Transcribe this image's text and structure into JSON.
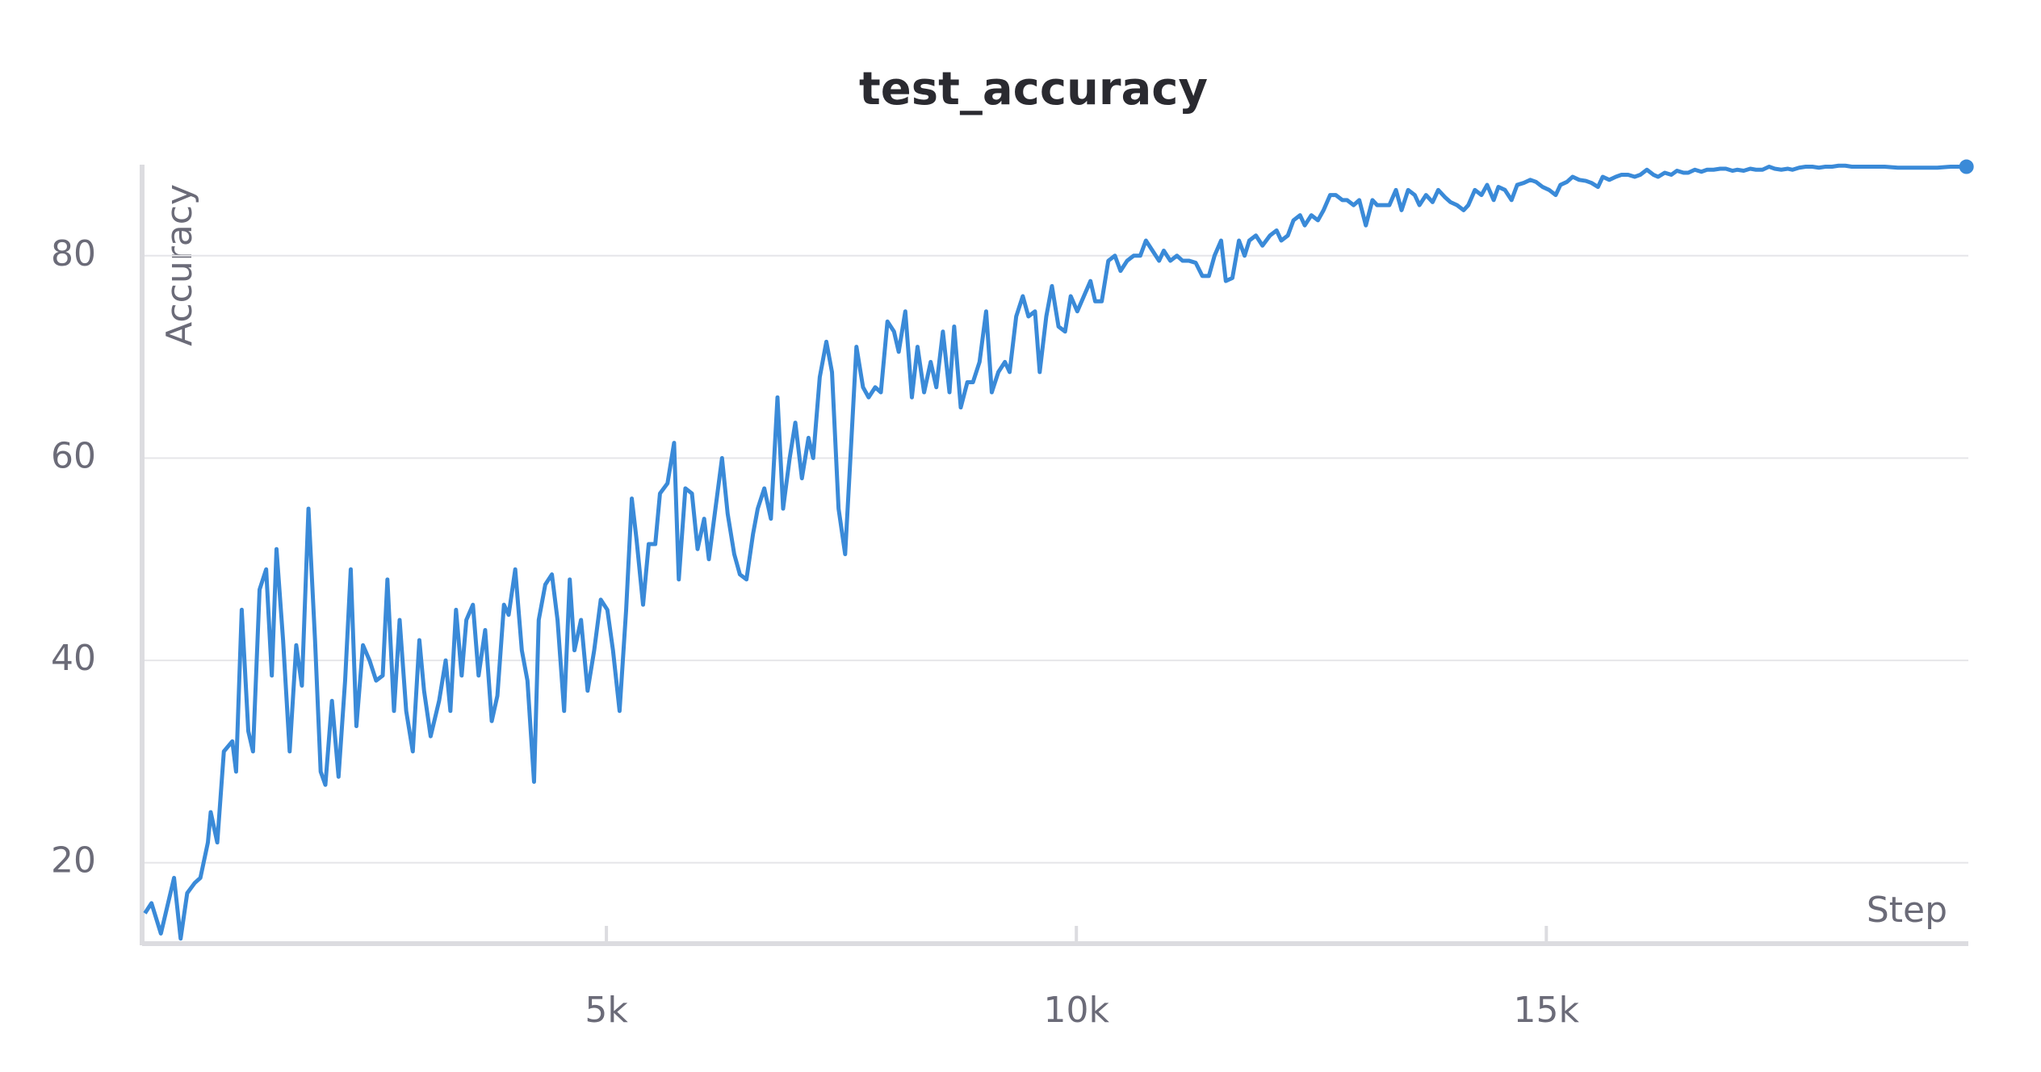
{
  "chart_data": {
    "type": "line",
    "title": "test_accuracy",
    "x_label": "Step",
    "y_label": "Accuracy",
    "color": "#3a8ad8",
    "x": [
      90,
      160,
      260,
      400,
      470,
      540,
      620,
      680,
      760,
      790,
      860,
      930,
      1020,
      1060,
      1120,
      1190,
      1240,
      1310,
      1380,
      1440,
      1490,
      1560,
      1630,
      1700,
      1760,
      1830,
      1900,
      1960,
      2010,
      2080,
      2150,
      2220,
      2280,
      2340,
      2410,
      2480,
      2550,
      2620,
      2670,
      2740,
      2800,
      2870,
      2940,
      3010,
      3060,
      3130,
      3220,
      3290,
      3340,
      3400,
      3460,
      3510,
      3580,
      3640,
      3710,
      3780,
      3840,
      3910,
      3960,
      4030,
      4100,
      4160,
      4230,
      4280,
      4350,
      4420,
      4480,
      4550,
      4610,
      4660,
      4730,
      4800,
      4870,
      4940,
      5010,
      5070,
      5140,
      5210,
      5270,
      5320,
      5390,
      5450,
      5520,
      5570,
      5650,
      5720,
      5770,
      5840,
      5910,
      5970,
      6040,
      6090,
      6160,
      6230,
      6290,
      6360,
      6420,
      6490,
      6560,
      6610,
      6680,
      6750,
      6820,
      6880,
      6950,
      7010,
      7080,
      7150,
      7200,
      7270,
      7340,
      7400,
      7470,
      7540,
      7590,
      7660,
      7730,
      7790,
      7860,
      7920,
      7990,
      8060,
      8110,
      8180,
      8250,
      8310,
      8380,
      8450,
      8510,
      8580,
      8650,
      8700,
      8770,
      8840,
      8900,
      8970,
      9040,
      9100,
      9170,
      9240,
      9290,
      9360,
      9430,
      9490,
      9560,
      9610,
      9680,
      9740,
      9810,
      9880,
      9940,
      10010,
      10080,
      10150,
      10200,
      10270,
      10340,
      10410,
      10470,
      10540,
      10610,
      10680,
      10740,
      10810,
      10880,
      10930,
      11000,
      11070,
      11130,
      11200,
      11270,
      11340,
      11410,
      11470,
      11540,
      11590,
      11660,
      11730,
      11790,
      11840,
      11910,
      11980,
      12060,
      12130,
      12180,
      12250,
      12310,
      12380,
      12430,
      12500,
      12570,
      12630,
      12700,
      12760,
      12830,
      12880,
      12950,
      13010,
      13080,
      13150,
      13200,
      13270,
      13330,
      13400,
      13460,
      13530,
      13600,
      13650,
      13720,
      13790,
      13850,
      13920,
      13980,
      14050,
      14120,
      14170,
      14240,
      14310,
      14370,
      14440,
      14490,
      14560,
      14630,
      14690,
      14760,
      14830,
      14890,
      14960,
      15030,
      15100,
      15150,
      15220,
      15280,
      15350,
      15420,
      15480,
      15550,
      15600,
      15670,
      15740,
      15800,
      15870,
      15940,
      16000,
      16070,
      16140,
      16190,
      16260,
      16330,
      16390,
      16460,
      16510,
      16580,
      16650,
      16710,
      16780,
      16850,
      16910,
      16980,
      17030,
      17100,
      17170,
      17230,
      17300,
      17370,
      17430,
      17500,
      17570,
      17620,
      17690,
      17760,
      17830,
      17900,
      17970,
      18040,
      18110,
      18180,
      18250,
      18320,
      18460,
      18600,
      18740,
      18880,
      19020,
      19160,
      19300,
      19470
    ],
    "values": [
      15,
      16,
      13,
      18.5,
      12.5,
      17,
      18,
      18.5,
      22,
      25,
      22,
      31,
      32,
      29,
      45,
      33,
      31,
      47,
      49,
      38.5,
      51,
      42,
      31,
      41.5,
      37.5,
      55,
      42,
      29,
      27.7,
      36,
      28.5,
      38,
      49,
      33.5,
      41.5,
      40,
      38,
      38.5,
      48,
      35,
      44,
      35,
      31,
      42,
      37,
      32.5,
      36,
      40,
      35,
      45,
      38.5,
      44,
      45.5,
      38.5,
      43,
      34,
      36.5,
      45.5,
      44.5,
      49,
      41,
      38,
      28,
      44,
      47.5,
      48.5,
      44,
      35,
      48,
      41,
      44,
      37,
      41,
      46,
      45,
      41,
      35,
      45,
      56,
      52,
      45.5,
      51.5,
      51.5,
      56.5,
      57.5,
      61.5,
      48,
      57,
      56.5,
      51,
      54,
      50,
      55,
      60,
      54.5,
      50.5,
      48.5,
      48,
      52.5,
      55,
      57,
      54,
      66,
      55,
      60,
      63.5,
      58,
      62,
      60,
      68,
      71.5,
      68.5,
      55,
      50.5,
      59,
      71,
      67,
      66,
      67,
      66.5,
      73.5,
      72.5,
      70.5,
      74.5,
      66,
      71,
      66.5,
      69.5,
      67,
      72.5,
      66.5,
      73,
      65,
      67.5,
      67.5,
      69.5,
      74.5,
      66.5,
      68.5,
      69.5,
      68.5,
      74,
      76,
      74,
      74.5,
      68.5,
      74,
      77,
      73,
      72.5,
      76,
      74.5,
      76,
      77.5,
      75.5,
      75.5,
      79.5,
      80,
      78.5,
      79.5,
      80,
      80,
      81.5,
      80.5,
      79.5,
      80.5,
      79.5,
      80,
      79.5,
      79.5,
      79.3,
      78,
      78,
      80,
      81.5,
      77.5,
      77.8,
      81.5,
      80,
      81.5,
      82,
      81,
      82,
      82.5,
      81.5,
      82,
      83.5,
      84,
      83,
      84,
      83.5,
      84.5,
      86,
      86,
      85.5,
      85.5,
      85,
      85.5,
      83,
      85.5,
      85,
      85,
      85,
      86.5,
      84.5,
      86.5,
      86,
      85,
      86,
      85.3,
      86.5,
      85.8,
      85.3,
      85,
      84.5,
      85,
      86.5,
      86,
      87,
      85.5,
      86.8,
      86.5,
      85.5,
      87,
      87.2,
      87.5,
      87.3,
      86.8,
      86.5,
      86,
      87,
      87.3,
      87.8,
      87.5,
      87.4,
      87.2,
      86.8,
      87.8,
      87.5,
      87.8,
      88,
      88,
      87.8,
      88,
      88.5,
      88,
      87.8,
      88.2,
      88,
      88.4,
      88.2,
      88.2,
      88.5,
      88.3,
      88.5,
      88.5,
      88.6,
      88.6,
      88.4,
      88.5,
      88.4,
      88.6,
      88.5,
      88.5,
      88.8,
      88.6,
      88.5,
      88.6,
      88.5,
      88.7,
      88.8,
      88.8,
      88.7,
      88.8,
      88.8,
      88.9,
      88.9,
      88.8,
      88.8,
      88.8,
      88.8,
      88.7,
      88.7,
      88.7,
      88.7,
      88.8,
      88.8
    ],
    "xlim": [
      60,
      19490
    ],
    "ylim": [
      12,
      89
    ],
    "xticks": [
      {
        "value": 5000,
        "label": "5k"
      },
      {
        "value": 10000,
        "label": "10k"
      },
      {
        "value": 15000,
        "label": "15k"
      }
    ],
    "yticks": [
      20,
      40,
      60,
      80
    ],
    "grid": true
  }
}
